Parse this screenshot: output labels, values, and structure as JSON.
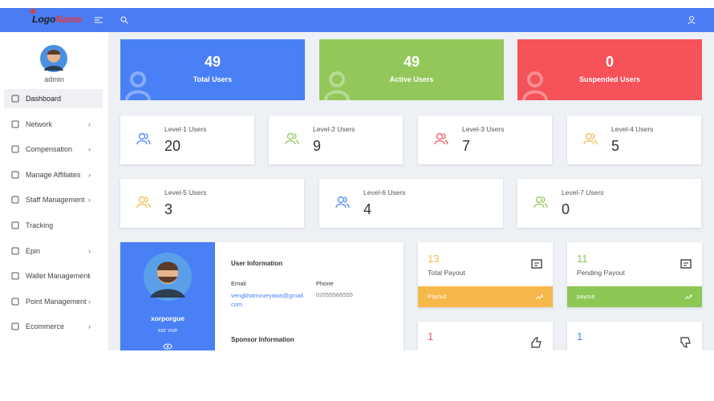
{
  "topbar": {
    "logo": {
      "part1": "Logo",
      "part2": "Name"
    }
  },
  "sidebar": {
    "user": "admin",
    "menu": [
      "Dashboard",
      "Network",
      "Compensation",
      "Manage Affiliates",
      "Staff Management",
      "Tracking",
      "Epin",
      "Wallet Management",
      "Point Management",
      "Ecommerce"
    ]
  },
  "stats": [
    {
      "value": 49,
      "label": "Total Users"
    },
    {
      "value": 49,
      "label": "Active Users"
    },
    {
      "value": 0,
      "label": "Suspended Users"
    }
  ],
  "levels": [
    {
      "label": "Level-1 Users",
      "value": 20
    },
    {
      "label": "Level-2 Users",
      "value": 9
    },
    {
      "label": "Level-3 Users",
      "value": 7
    },
    {
      "label": "Level-4 Users",
      "value": 5
    },
    {
      "label": "Level-5 Users",
      "value": 3
    },
    {
      "label": "Level-6 Users",
      "value": 4
    },
    {
      "label": "Level-7 Users",
      "value": 0
    }
  ],
  "profile": {
    "name": "xorporgue",
    "username": "xor vue",
    "user_info_title": "User Information",
    "email_label": "Email",
    "phone_label": "Phone",
    "email": "vengkhamvueyawa@gmail.com",
    "phone": "02055566555",
    "sponsor_title": "Sponsor Information"
  },
  "payouts": [
    {
      "value": 13,
      "label": "Total Payout",
      "footer": "Payout"
    },
    {
      "value": 11,
      "label": "Pending Payout",
      "footer": "payout"
    }
  ],
  "bottom_cards": [
    {
      "value": 1
    },
    {
      "value": 1
    }
  ]
}
